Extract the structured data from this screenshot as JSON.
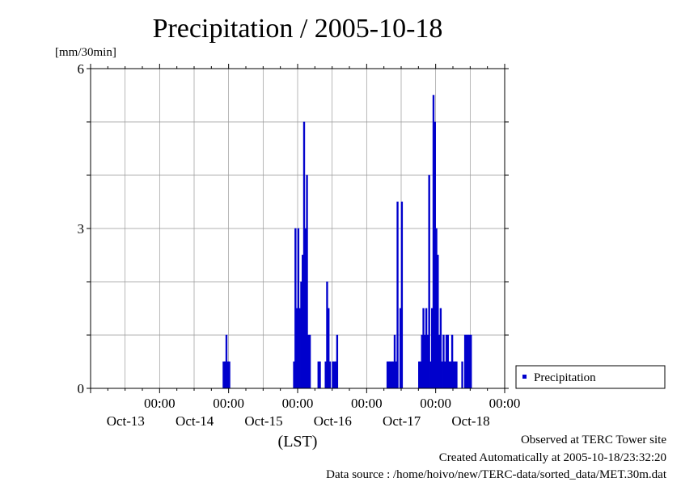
{
  "chart_data": {
    "type": "bar",
    "title": "Precipitation / 2005-10-18",
    "ylabel": "[mm/30min]",
    "xlabel": "(LST)",
    "ylim": [
      0,
      6
    ],
    "y_ticks": [
      "0",
      "3",
      "6"
    ],
    "x_ticks": [
      {
        "time": "00:00",
        "date": "Oct-13"
      },
      {
        "time": "00:00",
        "date": "Oct-14"
      },
      {
        "time": "00:00",
        "date": "Oct-15"
      },
      {
        "time": "00:00",
        "date": "Oct-16"
      },
      {
        "time": "00:00",
        "date": "Oct-17"
      },
      {
        "time": "00:00",
        "date": "Oct-18"
      }
    ],
    "xlim": [
      "2005-10-13 00:00",
      "2005-10-19 00:00"
    ],
    "grid": true,
    "legend": {
      "position": "right",
      "entries": [
        "Precipitation"
      ]
    },
    "bar_color": "#0000cc",
    "series": [
      {
        "name": "Precipitation",
        "points": [
          [
            "2005-10-14 22:00",
            0.5
          ],
          [
            "2005-10-14 22:30",
            0.5
          ],
          [
            "2005-10-14 23:00",
            1.0
          ],
          [
            "2005-10-14 23:30",
            0.5
          ],
          [
            "2005-10-15 00:00",
            0.5
          ],
          [
            "2005-10-15 22:30",
            0.5
          ],
          [
            "2005-10-15 23:00",
            3.0
          ],
          [
            "2005-10-15 23:30",
            1.5
          ],
          [
            "2005-10-16 00:00",
            3.0
          ],
          [
            "2005-10-16 00:30",
            1.5
          ],
          [
            "2005-10-16 01:00",
            2.0
          ],
          [
            "2005-10-16 01:30",
            2.5
          ],
          [
            "2005-10-16 02:00",
            5.0
          ],
          [
            "2005-10-16 02:30",
            3.0
          ],
          [
            "2005-10-16 03:00",
            4.0
          ],
          [
            "2005-10-16 03:30",
            1.0
          ],
          [
            "2005-10-16 04:00",
            1.0
          ],
          [
            "2005-10-16 07:00",
            0.5
          ],
          [
            "2005-10-16 07:30",
            0.5
          ],
          [
            "2005-10-16 09:30",
            0.5
          ],
          [
            "2005-10-16 10:00",
            2.0
          ],
          [
            "2005-10-16 10:30",
            1.5
          ],
          [
            "2005-10-16 11:00",
            0.5
          ],
          [
            "2005-10-16 12:00",
            0.5
          ],
          [
            "2005-10-16 12:30",
            0.5
          ],
          [
            "2005-10-16 13:00",
            0.5
          ],
          [
            "2005-10-16 13:30",
            1.0
          ],
          [
            "2005-10-17 07:00",
            0.5
          ],
          [
            "2005-10-17 07:30",
            0.5
          ],
          [
            "2005-10-17 08:00",
            0.5
          ],
          [
            "2005-10-17 08:30",
            0.5
          ],
          [
            "2005-10-17 09:00",
            0.5
          ],
          [
            "2005-10-17 09:30",
            1.0
          ],
          [
            "2005-10-17 10:00",
            0.5
          ],
          [
            "2005-10-17 10:30",
            3.5
          ],
          [
            "2005-10-17 11:30",
            1.5
          ],
          [
            "2005-10-17 12:00",
            3.5
          ],
          [
            "2005-10-17 18:00",
            0.5
          ],
          [
            "2005-10-17 18:30",
            0.5
          ],
          [
            "2005-10-17 19:00",
            1.0
          ],
          [
            "2005-10-17 19:30",
            1.5
          ],
          [
            "2005-10-17 20:00",
            1.0
          ],
          [
            "2005-10-17 20:30",
            1.5
          ],
          [
            "2005-10-17 21:00",
            1.0
          ],
          [
            "2005-10-17 21:30",
            4.0
          ],
          [
            "2005-10-17 22:00",
            0.5
          ],
          [
            "2005-10-17 22:30",
            1.5
          ],
          [
            "2005-10-17 23:00",
            5.5
          ],
          [
            "2005-10-17 23:30",
            5.0
          ],
          [
            "2005-10-18 00:00",
            3.0
          ],
          [
            "2005-10-18 00:30",
            2.5
          ],
          [
            "2005-10-18 01:00",
            1.0
          ],
          [
            "2005-10-18 01:30",
            1.5
          ],
          [
            "2005-10-18 02:00",
            0.5
          ],
          [
            "2005-10-18 02:30",
            1.0
          ],
          [
            "2005-10-18 03:00",
            0.5
          ],
          [
            "2005-10-18 03:30",
            1.0
          ],
          [
            "2005-10-18 04:00",
            1.0
          ],
          [
            "2005-10-18 04:30",
            0.5
          ],
          [
            "2005-10-18 05:00",
            0.5
          ],
          [
            "2005-10-18 05:30",
            1.0
          ],
          [
            "2005-10-18 06:00",
            0.5
          ],
          [
            "2005-10-18 06:30",
            0.5
          ],
          [
            "2005-10-18 07:00",
            0.5
          ],
          [
            "2005-10-18 09:00",
            0.5
          ],
          [
            "2005-10-18 10:00",
            1.0
          ],
          [
            "2005-10-18 10:30",
            1.0
          ],
          [
            "2005-10-18 11:00",
            1.0
          ],
          [
            "2005-10-18 11:30",
            1.0
          ],
          [
            "2005-10-18 12:00",
            1.0
          ]
        ]
      }
    ]
  },
  "footer": {
    "line1": "Observed at TERC Tower site",
    "line2": "Created Automatically at 2005-10-18/23:32:20",
    "line3": "Data source : /home/hoivo/new/TERC-data/sorted_data/MET.30m.dat"
  }
}
